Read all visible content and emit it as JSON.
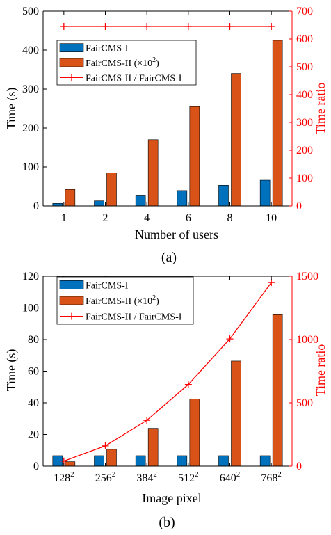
{
  "colors": {
    "blue": "#0072BD",
    "orange": "#D95319",
    "ratio": "#FF0000"
  },
  "chart_data": [
    {
      "type": "bar",
      "caption": "(a)",
      "xlabel": "Number of users",
      "ylabel": "Time (s)",
      "y2label": "Time ratio",
      "categories": [
        "1",
        "2",
        "4",
        "6",
        "8",
        "10"
      ],
      "ylim": [
        0,
        500
      ],
      "yticks": [
        "0",
        "100",
        "200",
        "300",
        "400",
        "500"
      ],
      "y2lim": [
        0,
        700
      ],
      "y2ticks": [
        "0",
        "100",
        "200",
        "300",
        "400",
        "500",
        "600",
        "700"
      ],
      "series": [
        {
          "name": "FairCMS-I",
          "axis": "left",
          "values": [
            6.5,
            13,
            26,
            39.5,
            53,
            66
          ]
        },
        {
          "name_html": "FairCMS-II (×10<sup>2</sup>)",
          "name": "FairCMS-II (×102)",
          "axis": "left",
          "values": [
            42.5,
            85,
            170,
            255,
            340,
            425
          ]
        },
        {
          "name": "FairCMS-II / FairCMS-I",
          "axis": "right",
          "type": "line",
          "values": [
            645,
            645,
            645,
            645,
            645,
            645
          ]
        }
      ],
      "legend_position": "top-left",
      "grid": false
    },
    {
      "type": "bar",
      "caption": "(b)",
      "xlabel": "Image pixel",
      "ylabel": "Time (s)",
      "y2label": "Time ratio",
      "categories": [
        "128",
        "256",
        "384",
        "512",
        "640",
        "768"
      ],
      "category_sup": "2",
      "ylim": [
        0,
        120
      ],
      "yticks": [
        "0",
        "20",
        "40",
        "60",
        "80",
        "100",
        "120"
      ],
      "y2lim": [
        0,
        1500
      ],
      "y2ticks": [
        "0",
        "500",
        "1000",
        "1500"
      ],
      "series": [
        {
          "name": "FairCMS-I",
          "axis": "left",
          "values": [
            6.6,
            6.6,
            6.6,
            6.6,
            6.6,
            6.6
          ]
        },
        {
          "name": "FairCMS-II (×102)",
          "axis": "left",
          "values": [
            2.8,
            10.6,
            23.9,
            42.5,
            66.4,
            95.7
          ]
        },
        {
          "name": "FairCMS-II / FairCMS-I",
          "axis": "right",
          "type": "line",
          "values": [
            40,
            160,
            362,
            645,
            1005,
            1450
          ]
        }
      ],
      "legend_position": "top-left",
      "grid": false
    }
  ]
}
